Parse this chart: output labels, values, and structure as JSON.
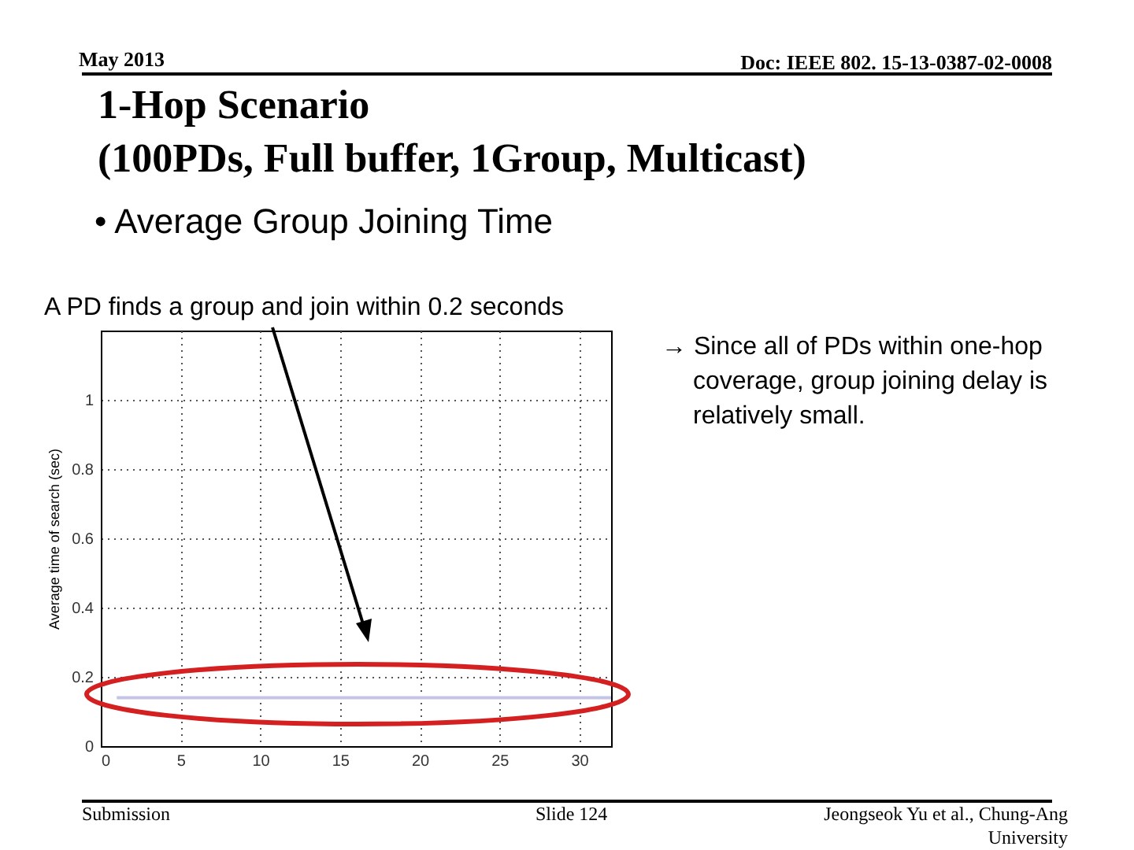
{
  "chart_data": {
    "type": "line",
    "title": "1-Hop Scenario\n(100PDs, Full buffer, 1Group, Multicast)",
    "subtitle": "•  Average Group Joining Time",
    "ylabel": "Average time of search (sec)",
    "annotations": [
      "May 2013",
      "Doc: IEEE 802. 15-13-0387-02-0008",
      "A PD finds a group and join within 0.2 seconds",
      "→ Since all of PDs within one-hop coverage, group joining delay is relatively small.",
      "Submission",
      "Slide 124",
      "Jeongseok Yu et al., Chung-Ang University"
    ],
    "x": [
      1,
      32
    ],
    "series": [
      {
        "color": "#c4c4e6",
        "values": [
          0.14,
          0.14
        ]
      }
    ],
    "xlim": [
      0,
      32
    ],
    "xticks": [
      0,
      5,
      10,
      15,
      20,
      25,
      30
    ],
    "ylim": [
      0,
      1.2
    ],
    "yticks": [
      0,
      0.2,
      0.4,
      0.6,
      0.8,
      {
        "value": 1,
        "label": "1"
      }
    ],
    "grid": true,
    "marker": "none",
    "line_style": "solid",
    "legend": false
  }
}
